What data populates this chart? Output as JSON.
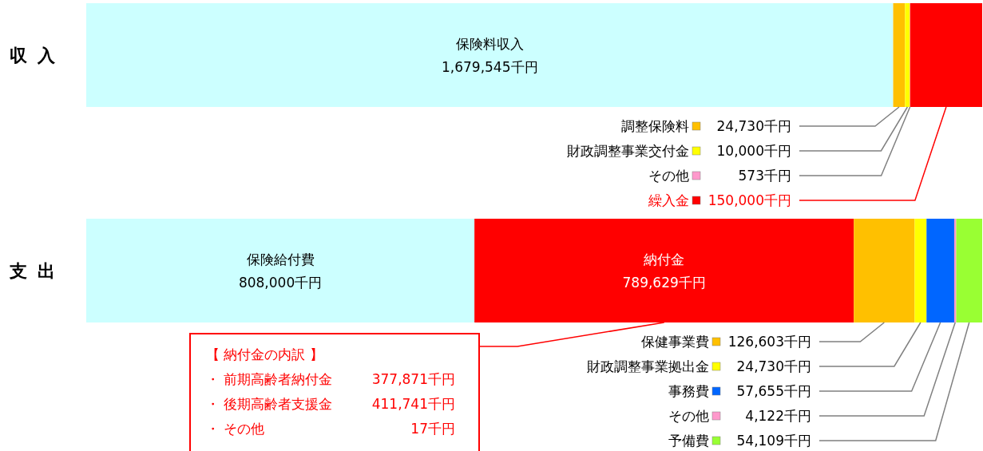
{
  "chart_data": {
    "type": "bar",
    "orientation": "horizontal",
    "stacked": true,
    "tick_labels": "y",
    "grid": false,
    "legend": "bottom right",
    "categories": [
      "収入",
      "支出"
    ],
    "series": [
      {
        "name": "保険料収入",
        "color": "#ccffff",
        "values": [
          1679545,
          null
        ],
        "value_labels": [
          "1,679,545千円",
          null
        ]
      },
      {
        "name": "調整保険料",
        "color": "#ffc000",
        "values": [
          24730,
          null
        ],
        "value_labels": [
          "24,730千円",
          null
        ]
      },
      {
        "name": "財政調整事業交付金",
        "color": "#ffff00",
        "values": [
          10000,
          null
        ],
        "value_labels": [
          "10,000千円",
          null
        ]
      },
      {
        "name": "その他",
        "color": "#ff99cc",
        "values": [
          573,
          null
        ],
        "value_labels": [
          "573千円",
          null
        ]
      },
      {
        "name": "繰入金",
        "color": "#ff0000",
        "values": [
          150000,
          null
        ],
        "value_labels": [
          "150,000千円",
          null
        ]
      },
      {
        "name": "保険給付費",
        "color": "#ccffff",
        "values": [
          null,
          808000
        ],
        "value_labels": [
          null,
          "808,000千円"
        ]
      },
      {
        "name": "納付金",
        "color": "#ff0000",
        "values": [
          null,
          789629
        ],
        "value_labels": [
          null,
          "789,629千円"
        ]
      },
      {
        "name": "保健事業費",
        "color": "#ffc000",
        "values": [
          null,
          126603
        ],
        "value_labels": [
          null,
          "126,603千円"
        ]
      },
      {
        "name": "財政調整事業拠出金",
        "color": "#ffff00",
        "values": [
          null,
          24730
        ],
        "value_labels": [
          null,
          "24,730千円"
        ]
      },
      {
        "name": "事務費",
        "color": "#0066ff",
        "values": [
          null,
          57655
        ],
        "value_labels": [
          null,
          "57,655千円"
        ]
      },
      {
        "name": "その他",
        "color": "#ff99cc",
        "values": [
          null,
          4122
        ],
        "value_labels": [
          null,
          "4,122千円"
        ]
      },
      {
        "name": "予備費",
        "color": "#99ff33",
        "values": [
          null,
          54109
        ],
        "value_labels": [
          null,
          "54,109千円"
        ]
      }
    ],
    "annotations": [
      "【 納付金の内訳 】",
      "・ 前期高齢者納付金 377,871千円",
      "・ 後期高齢者支援金 411,741千円",
      "・ その他 17千円"
    ]
  }
}
